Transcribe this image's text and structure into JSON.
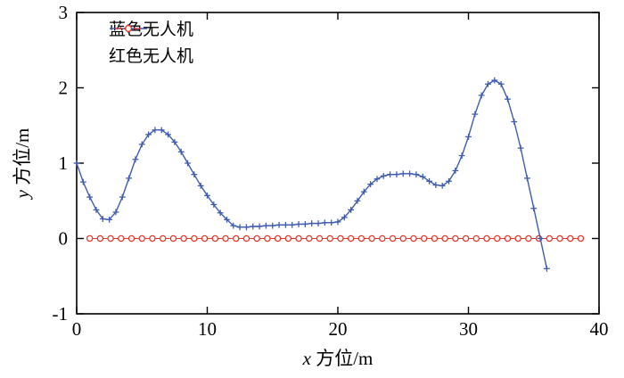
{
  "chart_data": {
    "type": "line",
    "title": "",
    "xlabel_var": "x",
    "xlabel_rest": " 方位/m",
    "ylabel_var": "y",
    "ylabel_rest": " 方位/m",
    "xlim": [
      0,
      40
    ],
    "ylim": [
      -1,
      3
    ],
    "x_ticks": [
      0,
      10,
      20,
      30,
      40
    ],
    "y_ticks": [
      -1,
      0,
      1,
      2,
      3
    ],
    "grid": false,
    "legend_position": "top-left-inside",
    "axis_color": "#000000",
    "series": [
      {
        "name": "蓝色无人机",
        "color": "#3f5cae",
        "marker": "plus",
        "x_start": 0,
        "x_step": 0.5,
        "y": [
          1.0,
          0.75,
          0.55,
          0.38,
          0.26,
          0.25,
          0.35,
          0.55,
          0.8,
          1.05,
          1.25,
          1.38,
          1.44,
          1.44,
          1.38,
          1.28,
          1.15,
          1.0,
          0.85,
          0.7,
          0.57,
          0.45,
          0.34,
          0.25,
          0.17,
          0.15,
          0.15,
          0.16,
          0.16,
          0.17,
          0.17,
          0.18,
          0.18,
          0.18,
          0.19,
          0.19,
          0.2,
          0.2,
          0.21,
          0.21,
          0.22,
          0.28,
          0.38,
          0.5,
          0.62,
          0.72,
          0.79,
          0.83,
          0.85,
          0.85,
          0.86,
          0.86,
          0.85,
          0.82,
          0.76,
          0.71,
          0.7,
          0.76,
          0.9,
          1.1,
          1.35,
          1.65,
          1.9,
          2.05,
          2.1,
          2.05,
          1.85,
          1.55,
          1.2,
          0.8,
          0.4,
          0.0,
          -0.4
        ]
      },
      {
        "name": "红色无人机",
        "color": "#e8372c",
        "marker": "circle-open",
        "x_start": 1,
        "x_step": 0.8,
        "count": 48,
        "y_constant": 0
      }
    ]
  }
}
